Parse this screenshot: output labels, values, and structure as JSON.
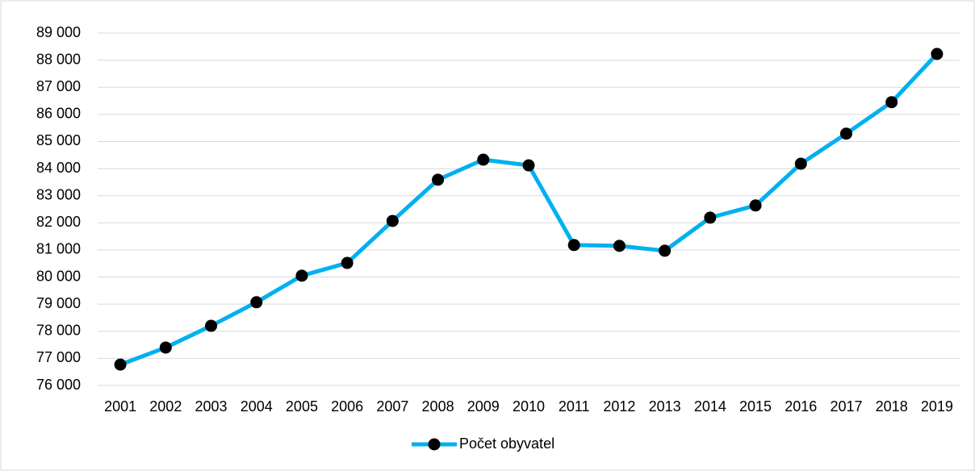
{
  "chart_data": {
    "type": "line",
    "categories": [
      "2001",
      "2002",
      "2003",
      "2004",
      "2005",
      "2006",
      "2007",
      "2008",
      "2009",
      "2010",
      "2011",
      "2012",
      "2013",
      "2014",
      "2015",
      "2016",
      "2017",
      "2018",
      "2019"
    ],
    "series": [
      {
        "name": "Počet obyvatel",
        "color": "#00b0f0",
        "marker_color": "#000000",
        "values": [
          76770,
          77400,
          78200,
          79070,
          80050,
          80520,
          82070,
          83590,
          84330,
          84120,
          81180,
          81150,
          80970,
          82190,
          82640,
          84180,
          85290,
          86450,
          88230
        ]
      }
    ],
    "ylim": [
      76000,
      89000
    ],
    "yticks": [
      {
        "value": 76000,
        "label": "76 000"
      },
      {
        "value": 77000,
        "label": "77 000"
      },
      {
        "value": 78000,
        "label": "78 000"
      },
      {
        "value": 79000,
        "label": "79 000"
      },
      {
        "value": 80000,
        "label": "80 000"
      },
      {
        "value": 81000,
        "label": "81 000"
      },
      {
        "value": 82000,
        "label": "82 000"
      },
      {
        "value": 83000,
        "label": "83 000"
      },
      {
        "value": 84000,
        "label": "84 000"
      },
      {
        "value": 85000,
        "label": "85 000"
      },
      {
        "value": 86000,
        "label": "86 000"
      },
      {
        "value": 87000,
        "label": "87 000"
      },
      {
        "value": 88000,
        "label": "88 000"
      },
      {
        "value": 89000,
        "label": "89 000"
      }
    ],
    "grid": true,
    "legend": "bottom"
  }
}
